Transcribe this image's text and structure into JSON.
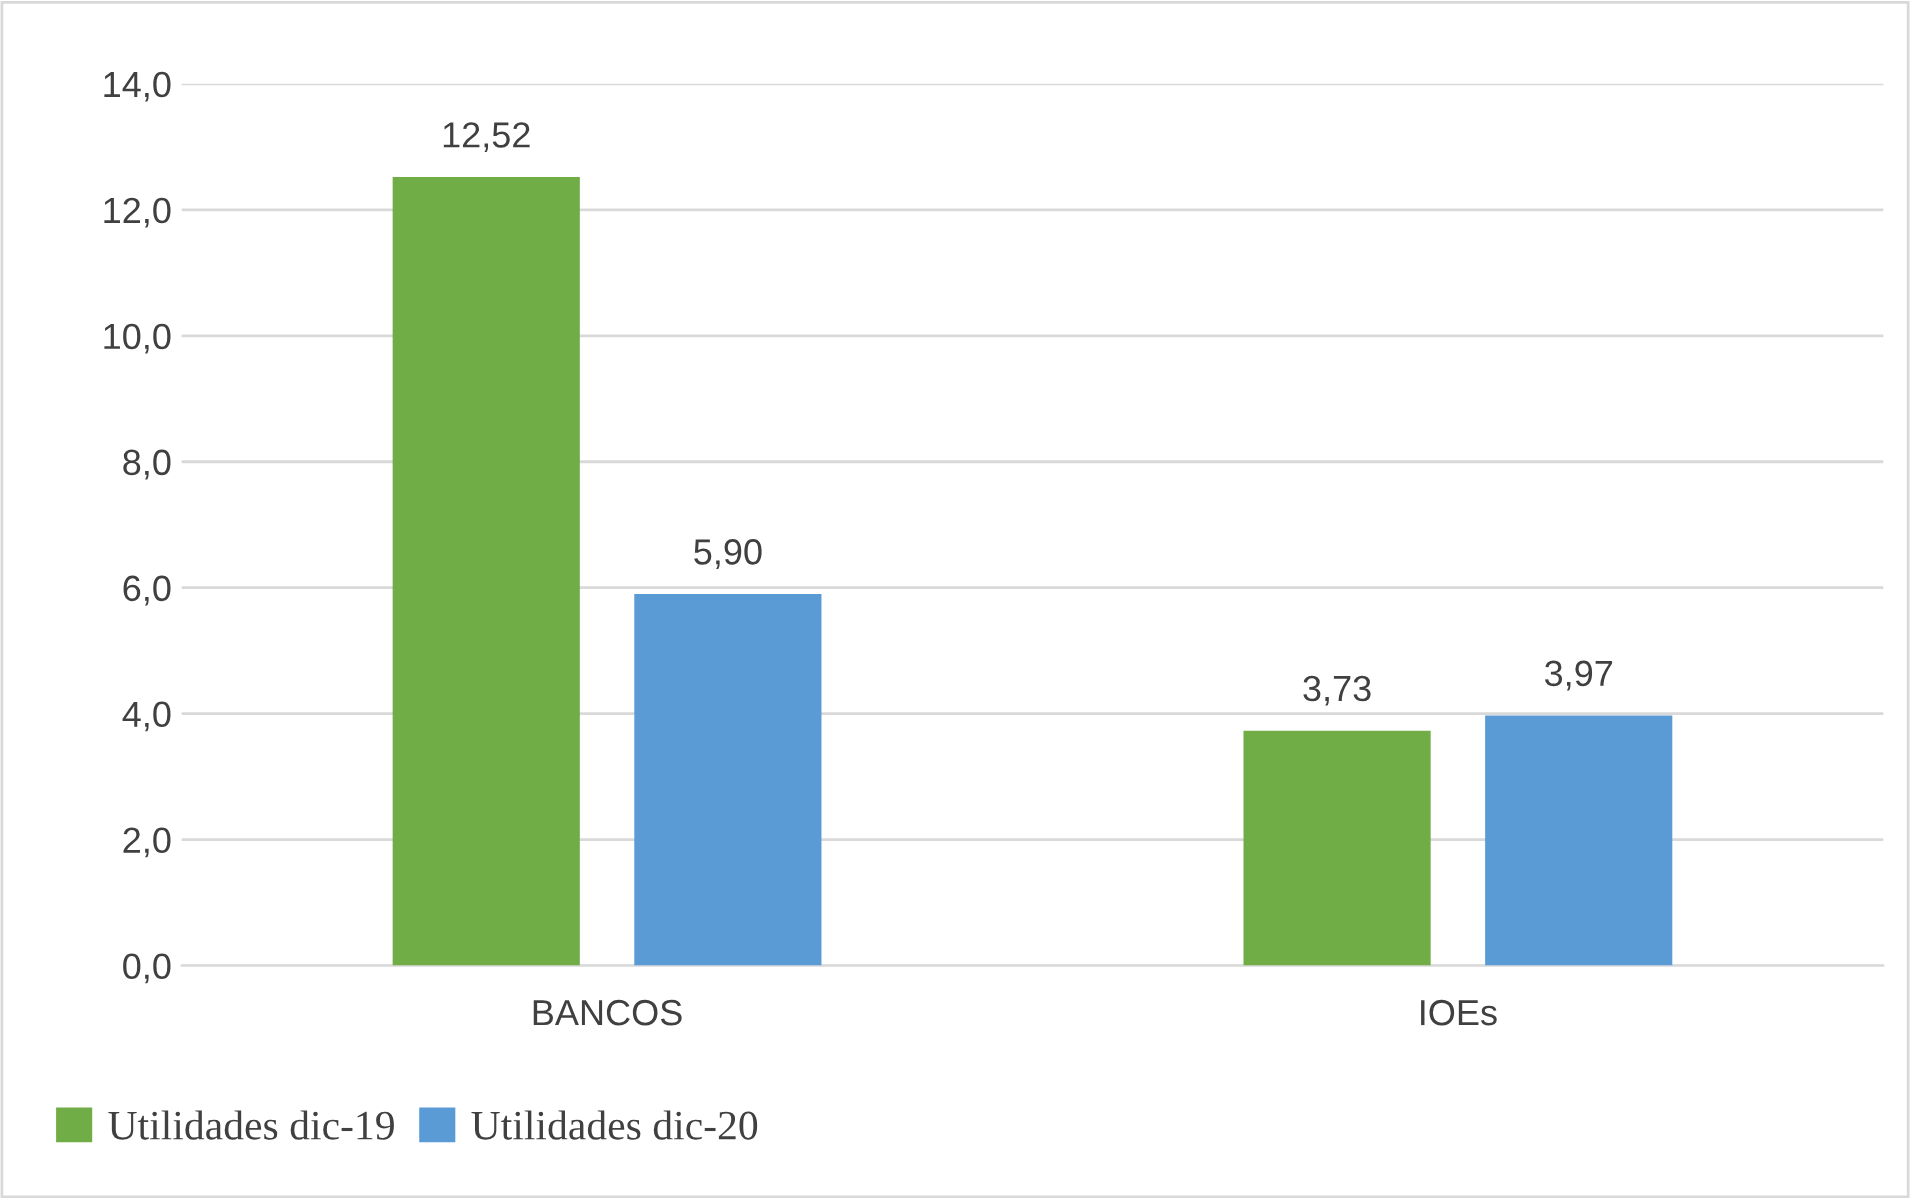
{
  "chart_data": {
    "type": "bar",
    "categories": [
      "BANCOS",
      "IOEs"
    ],
    "series": [
      {
        "name": "Utilidades dic-19",
        "color": "#70ad47",
        "values": [
          12.52,
          3.73
        ],
        "value_labels": [
          "12,52",
          "3,73"
        ]
      },
      {
        "name": "Utilidades dic-20",
        "color": "#5b9bd5",
        "values": [
          5.9,
          3.97
        ],
        "value_labels": [
          "5,90",
          "3,97"
        ]
      }
    ],
    "ylim": [
      0,
      14
    ],
    "yticks": [
      {
        "value": 0,
        "label": "0,0"
      },
      {
        "value": 2,
        "label": "2,0"
      },
      {
        "value": 4,
        "label": "4,0"
      },
      {
        "value": 6,
        "label": "6,0"
      },
      {
        "value": 8,
        "label": "8,0"
      },
      {
        "value": 10,
        "label": "10,0"
      },
      {
        "value": 12,
        "label": "12,0"
      },
      {
        "value": 14,
        "label": "14,0"
      }
    ],
    "grid": "y",
    "legend": "bottom left"
  }
}
